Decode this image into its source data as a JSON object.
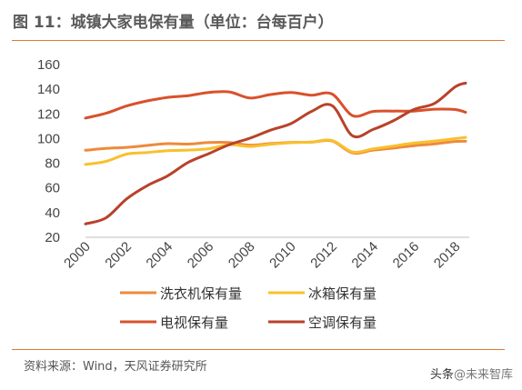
{
  "title": "图 11：城镇大家电保有量（单位：台每百户）",
  "source": "资料来源：Wind，天风证券研究所",
  "watermark": {
    "prefix": "头条",
    "handle": "@未来智库"
  },
  "chart_data": {
    "type": "line",
    "title": "图 11：城镇大家电保有量（单位：台每百户）",
    "xlabel": "",
    "ylabel": "",
    "xlim": [
      2000,
      2018.5
    ],
    "ylim": [
      20,
      160
    ],
    "x_ticks": [
      "2000",
      "2002",
      "2004",
      "2006",
      "2008",
      "2010",
      "2012",
      "2014",
      "2016",
      "2018"
    ],
    "y_ticks": [
      "20",
      "40",
      "60",
      "80",
      "100",
      "120",
      "140",
      "160"
    ],
    "grid": false,
    "legend_position": "bottom",
    "x": [
      2000,
      2001,
      2002,
      2003,
      2004,
      2005,
      2006,
      2007,
      2008,
      2009,
      2010,
      2011,
      2012,
      2013,
      2014,
      2015,
      2016,
      2017,
      2018,
      2018.5
    ],
    "series": [
      {
        "name": "洗衣机保有量",
        "color": "#ee8a3c",
        "values": [
          90.5,
          92,
          92.9,
          94.4,
          95.9,
          95.5,
          96.8,
          96.8,
          94.7,
          96,
          96.9,
          97.1,
          98,
          88.4,
          90.7,
          92.3,
          94.2,
          95.7,
          97.7,
          97.8
        ]
      },
      {
        "name": "冰箱保有量",
        "color": "#f9c02d",
        "values": [
          79,
          81.5,
          87.4,
          88.7,
          90.2,
          90.7,
          91.8,
          95,
          93.6,
          95.4,
          96.6,
          97.2,
          98.5,
          89.2,
          91.7,
          94,
          96.4,
          98,
          100,
          101
        ]
      },
      {
        "name": "电视保有量",
        "color": "#d9512c",
        "values": [
          116.6,
          120.5,
          126.4,
          130.5,
          133.4,
          134.8,
          137.4,
          137.8,
          132.9,
          135.7,
          137.4,
          135.2,
          136.1,
          118.6,
          122,
          122.3,
          122.3,
          123.8,
          123.5,
          121.3
        ]
      },
      {
        "name": "空调保有量",
        "color": "#b8422a",
        "values": [
          30.8,
          35.8,
          51.1,
          61.8,
          69.8,
          80.7,
          87.8,
          95.1,
          100.3,
          106.8,
          112.1,
          122,
          126.8,
          102.2,
          107.4,
          114.6,
          123.7,
          128.6,
          142,
          145
        ]
      }
    ]
  }
}
